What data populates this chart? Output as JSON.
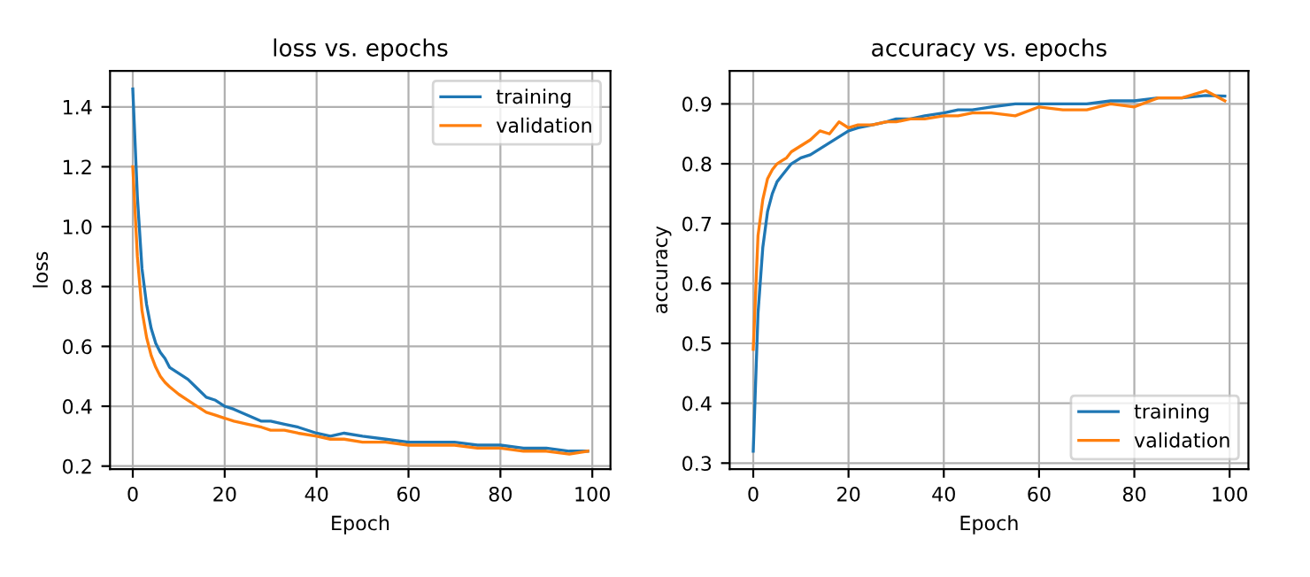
{
  "chart_data": [
    {
      "type": "line",
      "title": "loss vs. epochs",
      "xlabel": "Epoch",
      "ylabel": "loss",
      "legend": "top right",
      "grid": true,
      "x": [
        0,
        1,
        2,
        3,
        4,
        5,
        6,
        7,
        8,
        10,
        12,
        14,
        16,
        18,
        20,
        22,
        25,
        28,
        30,
        33,
        36,
        40,
        43,
        46,
        50,
        55,
        60,
        65,
        70,
        75,
        80,
        85,
        90,
        95,
        99
      ],
      "xlim": [
        -4.95,
        103.95
      ],
      "xticks": [
        0,
        20,
        40,
        60,
        80,
        100
      ],
      "ylim": [
        0.19,
        1.52
      ],
      "yticks": [
        0.2,
        0.4,
        0.6,
        0.8,
        {
          "value": 1.0,
          "label": "1.0"
        },
        1.2,
        1.4
      ],
      "series": [
        {
          "name": "training",
          "color": "#1f77b4",
          "values": [
            1.46,
            1.1,
            0.86,
            0.74,
            0.66,
            0.61,
            0.58,
            0.56,
            0.53,
            0.51,
            0.49,
            0.46,
            0.43,
            0.42,
            0.4,
            0.39,
            0.37,
            0.35,
            0.35,
            0.34,
            0.33,
            0.31,
            0.3,
            0.31,
            0.3,
            0.29,
            0.28,
            0.28,
            0.28,
            0.27,
            0.27,
            0.26,
            0.26,
            0.25,
            0.25
          ]
        },
        {
          "name": "validation",
          "color": "#ff7f0e",
          "values": [
            1.2,
            0.9,
            0.72,
            0.63,
            0.57,
            0.53,
            0.5,
            0.48,
            0.465,
            0.44,
            0.42,
            0.4,
            0.38,
            0.37,
            0.36,
            0.35,
            0.34,
            0.33,
            0.32,
            0.32,
            0.31,
            0.3,
            0.29,
            0.29,
            0.28,
            0.28,
            0.27,
            0.27,
            0.27,
            0.26,
            0.26,
            0.25,
            0.25,
            0.24,
            0.25
          ]
        }
      ]
    },
    {
      "type": "line",
      "title": "accuracy vs. epochs",
      "xlabel": "Epoch",
      "ylabel": "accuracy",
      "legend": "bottom right",
      "grid": true,
      "x": [
        0,
        1,
        2,
        3,
        4,
        5,
        6,
        7,
        8,
        10,
        12,
        14,
        16,
        18,
        20,
        22,
        25,
        28,
        30,
        33,
        36,
        40,
        43,
        46,
        50,
        55,
        60,
        65,
        70,
        75,
        80,
        85,
        90,
        95,
        99
      ],
      "xlim": [
        -4.95,
        103.95
      ],
      "xticks": [
        0,
        20,
        40,
        60,
        80,
        100
      ],
      "ylim": [
        0.29,
        0.955
      ],
      "yticks": [
        0.3,
        0.4,
        0.5,
        0.6,
        0.7,
        0.8,
        0.9
      ],
      "series": [
        {
          "name": "training",
          "color": "#1f77b4",
          "values": [
            0.32,
            0.55,
            0.66,
            0.72,
            0.75,
            0.77,
            0.78,
            0.79,
            0.8,
            0.81,
            0.815,
            0.825,
            0.835,
            0.845,
            0.855,
            0.86,
            0.865,
            0.87,
            0.875,
            0.875,
            0.88,
            0.885,
            0.89,
            0.89,
            0.895,
            0.9,
            0.9,
            0.9,
            0.9,
            0.905,
            0.905,
            0.91,
            0.91,
            0.914,
            0.913
          ]
        },
        {
          "name": "validation",
          "color": "#ff7f0e",
          "values": [
            0.49,
            0.68,
            0.74,
            0.775,
            0.79,
            0.8,
            0.805,
            0.81,
            0.82,
            0.83,
            0.84,
            0.855,
            0.85,
            0.87,
            0.86,
            0.865,
            0.865,
            0.87,
            0.87,
            0.875,
            0.875,
            0.88,
            0.88,
            0.885,
            0.885,
            0.88,
            0.895,
            0.89,
            0.89,
            0.9,
            0.895,
            0.91,
            0.91,
            0.922,
            0.905
          ]
        }
      ]
    }
  ]
}
